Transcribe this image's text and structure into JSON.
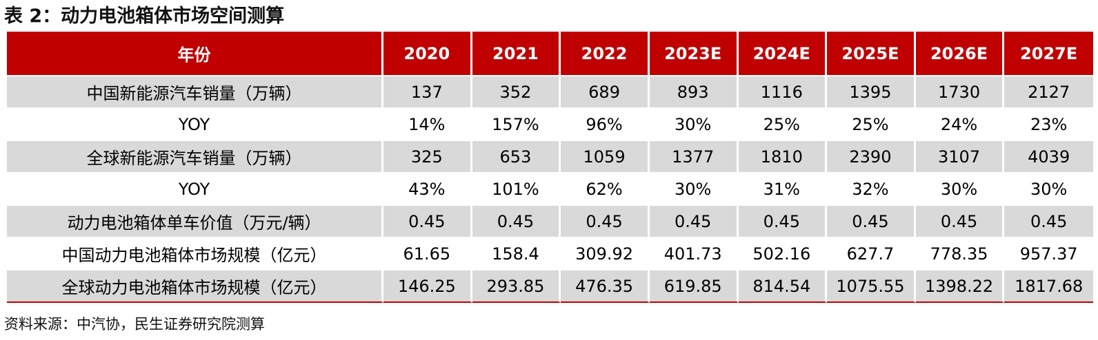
{
  "title": "表 2：动力电池箱体市场空间测算",
  "table": {
    "header": [
      "年份",
      "2020",
      "2021",
      "2022",
      "2023E",
      "2024E",
      "2025E",
      "2026E",
      "2027E"
    ],
    "rows": [
      {
        "label": "中国新能源汽车销量（万辆）",
        "values": [
          "137",
          "352",
          "689",
          "893",
          "1116",
          "1395",
          "1730",
          "2127"
        ]
      },
      {
        "label": "YOY",
        "values": [
          "14%",
          "157%",
          "96%",
          "30%",
          "25%",
          "25%",
          "24%",
          "23%"
        ]
      },
      {
        "label": "全球新能源汽车销量（万辆）",
        "values": [
          "325",
          "653",
          "1059",
          "1377",
          "1810",
          "2390",
          "3107",
          "4039"
        ]
      },
      {
        "label": "YOY",
        "values": [
          "43%",
          "101%",
          "62%",
          "30%",
          "31%",
          "32%",
          "30%",
          "30%"
        ]
      },
      {
        "label": "动力电池箱体单车价值（万元/辆）",
        "values": [
          "0.45",
          "0.45",
          "0.45",
          "0.45",
          "0.45",
          "0.45",
          "0.45",
          "0.45"
        ]
      },
      {
        "label": "中国动力电池箱体市场规模（亿元）",
        "values": [
          "61.65",
          "158.4",
          "309.92",
          "401.73",
          "502.16",
          "627.7",
          "778.35",
          "957.37"
        ]
      },
      {
        "label": "全球动力电池箱体市场规模（亿元）",
        "values": [
          "146.25",
          "293.85",
          "476.35",
          "619.85",
          "814.54",
          "1075.55",
          "1398.22",
          "1817.68"
        ]
      }
    ]
  },
  "source": "资料来源：中汽协，民生证券研究院测算",
  "colors": {
    "header_bg": "#c00000",
    "shade_bg": "#d9d9d9"
  }
}
